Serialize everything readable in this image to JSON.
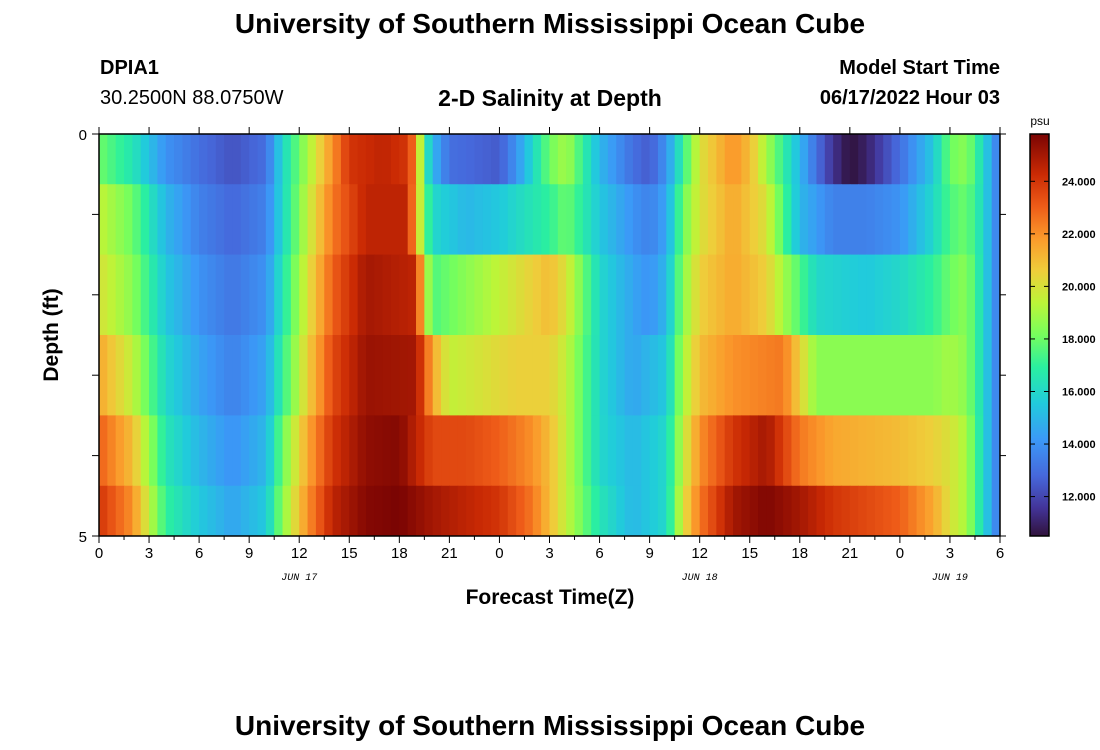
{
  "header": {
    "title": "University of Southern Mississippi Ocean Cube",
    "station_id": "DPIA1",
    "station_coords": "30.2500N  88.0750W",
    "plot_title": "2-D Salinity at Depth",
    "model_start_label": "Model Start Time",
    "model_start_value": "06/17/2022 Hour 03"
  },
  "footer": {
    "title": "University of Southern Mississippi Ocean Cube"
  },
  "chart_data": {
    "type": "heatmap",
    "title": "2-D Salinity at Depth",
    "xlabel": "Forecast Time(Z)",
    "ylabel": "Depth (ft)",
    "x_ticks": [
      "0",
      "3",
      "6",
      "9",
      "12",
      "15",
      "18",
      "21",
      "0",
      "3",
      "6",
      "9",
      "12",
      "15",
      "18",
      "21",
      "0",
      "3",
      "6"
    ],
    "x_range_hours": [
      0,
      54
    ],
    "date_labels": [
      {
        "text": "JUN 17",
        "hour": 12
      },
      {
        "text": "JUN 18",
        "hour": 36
      },
      {
        "text": "JUN 19",
        "hour": 51
      }
    ],
    "y_range_ft": [
      0,
      5
    ],
    "y_tick_labels": [
      {
        "value": 0,
        "text": "0"
      },
      {
        "value": 5,
        "text": "5"
      }
    ],
    "colorbar": {
      "unit": "psu",
      "min": 10.5,
      "max": 25.8,
      "tick_labels": [
        "12.000",
        "14.000",
        "16.000",
        "18.000",
        "20.000",
        "22.000",
        "24.000"
      ]
    },
    "layer_depths_ft": [
      0.25,
      1.0,
      2.0,
      3.0,
      4.0,
      4.75
    ],
    "layer_keyframes": [
      [
        [
          0,
          18
        ],
        [
          2,
          16.5
        ],
        [
          4,
          14
        ],
        [
          6,
          13
        ],
        [
          8,
          12.3
        ],
        [
          10,
          13
        ],
        [
          11,
          16
        ],
        [
          12.5,
          19
        ],
        [
          14,
          22
        ],
        [
          15,
          24
        ],
        [
          17,
          24.5
        ],
        [
          18.5,
          24
        ],
        [
          19,
          22
        ],
        [
          19.5,
          17
        ],
        [
          20,
          15
        ],
        [
          21,
          13
        ],
        [
          24,
          12.5
        ],
        [
          25,
          14
        ],
        [
          26,
          16
        ],
        [
          27,
          18
        ],
        [
          28,
          19
        ],
        [
          30,
          15
        ],
        [
          32,
          13
        ],
        [
          33,
          12.5
        ],
        [
          34,
          14
        ],
        [
          35,
          17
        ],
        [
          36,
          20
        ],
        [
          38,
          22
        ],
        [
          39,
          21
        ],
        [
          40,
          19
        ],
        [
          41,
          17
        ],
        [
          42,
          15
        ],
        [
          43,
          13
        ],
        [
          44,
          11.5
        ],
        [
          45,
          10.5
        ],
        [
          46,
          11
        ],
        [
          47,
          12
        ],
        [
          48,
          13
        ],
        [
          50,
          15.5
        ],
        [
          51,
          18
        ],
        [
          52,
          18.5
        ],
        [
          53,
          16
        ],
        [
          54,
          13
        ]
      ],
      [
        [
          0,
          19.5
        ],
        [
          2,
          18
        ],
        [
          4,
          15
        ],
        [
          6,
          13.5
        ],
        [
          8,
          12.8
        ],
        [
          10,
          13.5
        ],
        [
          11,
          16
        ],
        [
          12.5,
          19.5
        ],
        [
          14,
          22.5
        ],
        [
          16,
          24.5
        ],
        [
          18.5,
          24.5
        ],
        [
          19.5,
          18
        ],
        [
          20,
          16
        ],
        [
          22,
          15
        ],
        [
          24,
          15.5
        ],
        [
          25,
          16
        ],
        [
          27,
          17
        ],
        [
          28,
          18
        ],
        [
          30,
          15.5
        ],
        [
          32,
          14
        ],
        [
          33,
          13.5
        ],
        [
          34,
          14.5
        ],
        [
          35,
          18
        ],
        [
          36,
          20
        ],
        [
          38,
          21.5
        ],
        [
          40,
          20
        ],
        [
          42,
          15
        ],
        [
          44,
          13.5
        ],
        [
          46,
          13.5
        ],
        [
          48,
          14
        ],
        [
          50,
          16
        ],
        [
          51,
          17.5
        ],
        [
          52,
          18
        ],
        [
          53,
          16
        ],
        [
          54,
          13
        ]
      ],
      [
        [
          0,
          20
        ],
        [
          2,
          18.5
        ],
        [
          4,
          15.5
        ],
        [
          6,
          14
        ],
        [
          8,
          13.2
        ],
        [
          10,
          14
        ],
        [
          11,
          16.5
        ],
        [
          12.5,
          20
        ],
        [
          14,
          23
        ],
        [
          16,
          25
        ],
        [
          19,
          24.5
        ],
        [
          19.5,
          20
        ],
        [
          20,
          17.5
        ],
        [
          22,
          18.5
        ],
        [
          24,
          19.5
        ],
        [
          27,
          21
        ],
        [
          28,
          20
        ],
        [
          30,
          16
        ],
        [
          32,
          14.5
        ],
        [
          33,
          14
        ],
        [
          34,
          15
        ],
        [
          35,
          18.5
        ],
        [
          36,
          20.5
        ],
        [
          38,
          21.5
        ],
        [
          40,
          20.5
        ],
        [
          42,
          17.5
        ],
        [
          43,
          16
        ],
        [
          46,
          15.5
        ],
        [
          48,
          16
        ],
        [
          50,
          17
        ],
        [
          51,
          18
        ],
        [
          52,
          18.5
        ],
        [
          53,
          16
        ],
        [
          54,
          13
        ]
      ],
      [
        [
          0,
          21.5
        ],
        [
          2,
          19.5
        ],
        [
          4,
          16
        ],
        [
          6,
          14.5
        ],
        [
          8,
          13.5
        ],
        [
          10,
          14.5
        ],
        [
          11,
          17
        ],
        [
          12.5,
          20.5
        ],
        [
          14,
          23.5
        ],
        [
          16,
          25.2
        ],
        [
          19,
          25
        ],
        [
          20,
          21.5
        ],
        [
          21,
          19.5
        ],
        [
          23,
          20
        ],
        [
          25,
          20.5
        ],
        [
          27,
          20.5
        ],
        [
          28,
          19.5
        ],
        [
          30,
          16
        ],
        [
          32,
          14.5
        ],
        [
          34,
          15.5
        ],
        [
          35,
          19
        ],
        [
          36,
          21
        ],
        [
          38,
          22
        ],
        [
          41,
          22.5
        ],
        [
          43,
          18.5
        ],
        [
          46,
          18.5
        ],
        [
          48,
          18.5
        ],
        [
          50,
          18.5
        ],
        [
          51,
          19
        ],
        [
          52,
          18.5
        ],
        [
          53,
          16
        ],
        [
          54,
          13
        ]
      ],
      [
        [
          0,
          23
        ],
        [
          2,
          21
        ],
        [
          4,
          16.5
        ],
        [
          6,
          15
        ],
        [
          8,
          14
        ],
        [
          10,
          15
        ],
        [
          11,
          18
        ],
        [
          12.5,
          21.5
        ],
        [
          14,
          24
        ],
        [
          16,
          25.4
        ],
        [
          18,
          25.6
        ],
        [
          20,
          23.5
        ],
        [
          22,
          23.5
        ],
        [
          24,
          23
        ],
        [
          26,
          22
        ],
        [
          27,
          21
        ],
        [
          28,
          19.5
        ],
        [
          30,
          16
        ],
        [
          32,
          15
        ],
        [
          34,
          16
        ],
        [
          35,
          19.5
        ],
        [
          36,
          22
        ],
        [
          38,
          24
        ],
        [
          40,
          25
        ],
        [
          42,
          22.5
        ],
        [
          44,
          21.5
        ],
        [
          48,
          21
        ],
        [
          50,
          20.5
        ],
        [
          51,
          20
        ],
        [
          52,
          19
        ],
        [
          53,
          16
        ],
        [
          54,
          13
        ]
      ],
      [
        [
          0,
          24
        ],
        [
          2,
          22
        ],
        [
          4,
          17
        ],
        [
          6,
          15.5
        ],
        [
          8,
          14.5
        ],
        [
          10,
          15.5
        ],
        [
          11,
          18.5
        ],
        [
          12.5,
          22
        ],
        [
          14,
          24.5
        ],
        [
          16,
          25.6
        ],
        [
          18,
          25.8
        ],
        [
          20,
          25
        ],
        [
          22,
          24.5
        ],
        [
          24,
          24
        ],
        [
          26,
          22.5
        ],
        [
          27,
          21
        ],
        [
          28,
          19.5
        ],
        [
          30,
          16.5
        ],
        [
          32,
          15
        ],
        [
          34,
          16
        ],
        [
          35,
          20
        ],
        [
          36,
          22.5
        ],
        [
          38,
          25
        ],
        [
          40,
          25.7
        ],
        [
          42,
          25
        ],
        [
          44,
          24
        ],
        [
          48,
          23
        ],
        [
          50,
          21.5
        ],
        [
          51,
          20
        ],
        [
          52,
          19
        ],
        [
          53,
          16
        ],
        [
          54,
          13
        ]
      ]
    ]
  }
}
